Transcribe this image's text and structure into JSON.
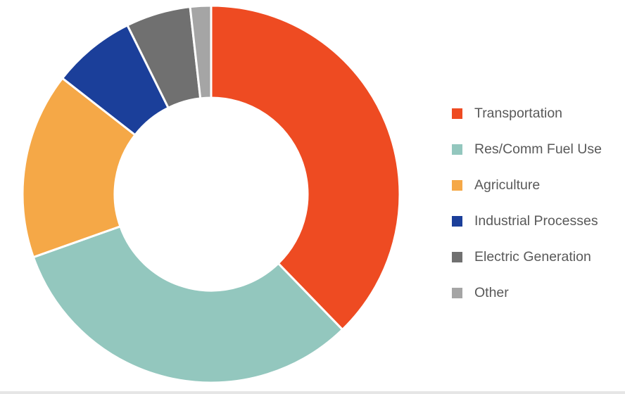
{
  "chart_data": {
    "type": "pie",
    "donut": true,
    "title": "",
    "categories": [
      "Transportation",
      "Res/Comm Fuel Use",
      "Agriculture",
      "Industrial Processes",
      "Electric Generation",
      "Other"
    ],
    "values": [
      40.2,
      33.9,
      17.0,
      7.6,
      5.9,
      1.9
    ],
    "value_unit": "percent (estimated)",
    "colors": [
      "#EE4B22",
      "#93C7BE",
      "#F5A847",
      "#1B3F9A",
      "#707070",
      "#A5A5A5"
    ],
    "legend_position": "right",
    "start_angle": "top (12 o'clock), clockwise"
  },
  "legend": {
    "items": [
      {
        "label": "Transportation",
        "color": "#EE4B22"
      },
      {
        "label": "Res/Comm Fuel Use",
        "color": "#93C7BE"
      },
      {
        "label": "Agriculture",
        "color": "#F5A847"
      },
      {
        "label": "Industrial Processes",
        "color": "#1B3F9A"
      },
      {
        "label": "Electric Generation",
        "color": "#707070"
      },
      {
        "label": "Other",
        "color": "#A5A5A5"
      }
    ]
  }
}
